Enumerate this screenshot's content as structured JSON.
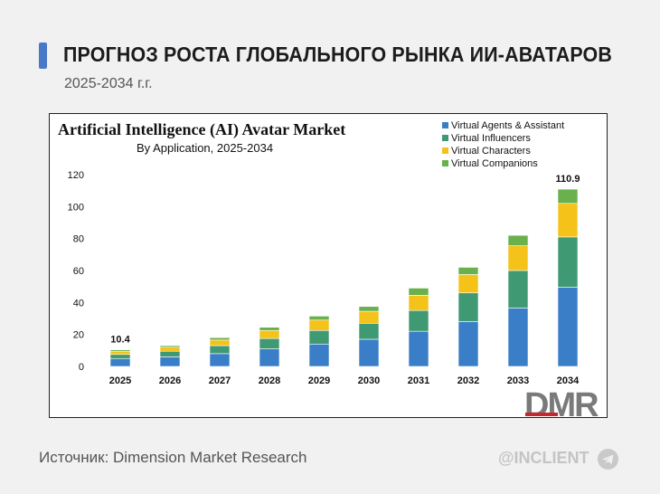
{
  "header": {
    "title": "ПРОГНОЗ РОСТА ГЛОБАЛЬНОГО РЫНКА ИИ-АВАТАРОВ",
    "subtitle": "2025-2034 г.г.",
    "accent_color": "#4a78c9"
  },
  "footer": {
    "source": "Источник: Dimension Market Research",
    "handle": "@INCLIENT",
    "handle_icon": "telegram-icon"
  },
  "chart_data": {
    "type": "bar",
    "stacked": true,
    "title": "Artificial Intelligence (AI) Avatar Market",
    "subtitle": "By Application, 2025-2034",
    "xlabel": "",
    "ylabel": "",
    "ylim": [
      0,
      120
    ],
    "yticks": [
      0,
      20,
      40,
      60,
      80,
      100,
      120
    ],
    "grid": false,
    "legend_position": "top-right",
    "categories": [
      "2025",
      "2026",
      "2027",
      "2028",
      "2029",
      "2030",
      "2031",
      "2032",
      "2033",
      "2034"
    ],
    "series": [
      {
        "name": "Virtual Agents & Assistant",
        "color": "#3a7ec8",
        "values": [
          4.7,
          6.0,
          8.0,
          11.0,
          14.0,
          17.0,
          22.0,
          28.0,
          36.5,
          49.5
        ]
      },
      {
        "name": "Virtual Influencers",
        "color": "#3f9a74",
        "values": [
          2.8,
          3.5,
          5.0,
          6.5,
          8.5,
          10.0,
          13.0,
          18.0,
          23.5,
          31.5
        ]
      },
      {
        "name": "Virtual Characters",
        "color": "#f5c21a",
        "values": [
          2.0,
          2.5,
          3.5,
          5.0,
          6.5,
          7.5,
          9.5,
          11.5,
          15.5,
          21.0
        ]
      },
      {
        "name": "Virtual Companions",
        "color": "#6ab04c",
        "values": [
          0.9,
          1.0,
          1.5,
          2.0,
          2.5,
          3.0,
          4.5,
          4.5,
          6.5,
          8.9
        ]
      }
    ],
    "data_labels": [
      {
        "category": "2025",
        "text": "10.4"
      },
      {
        "category": "2034",
        "text": "110.9"
      }
    ],
    "logo_text": "DMR"
  }
}
